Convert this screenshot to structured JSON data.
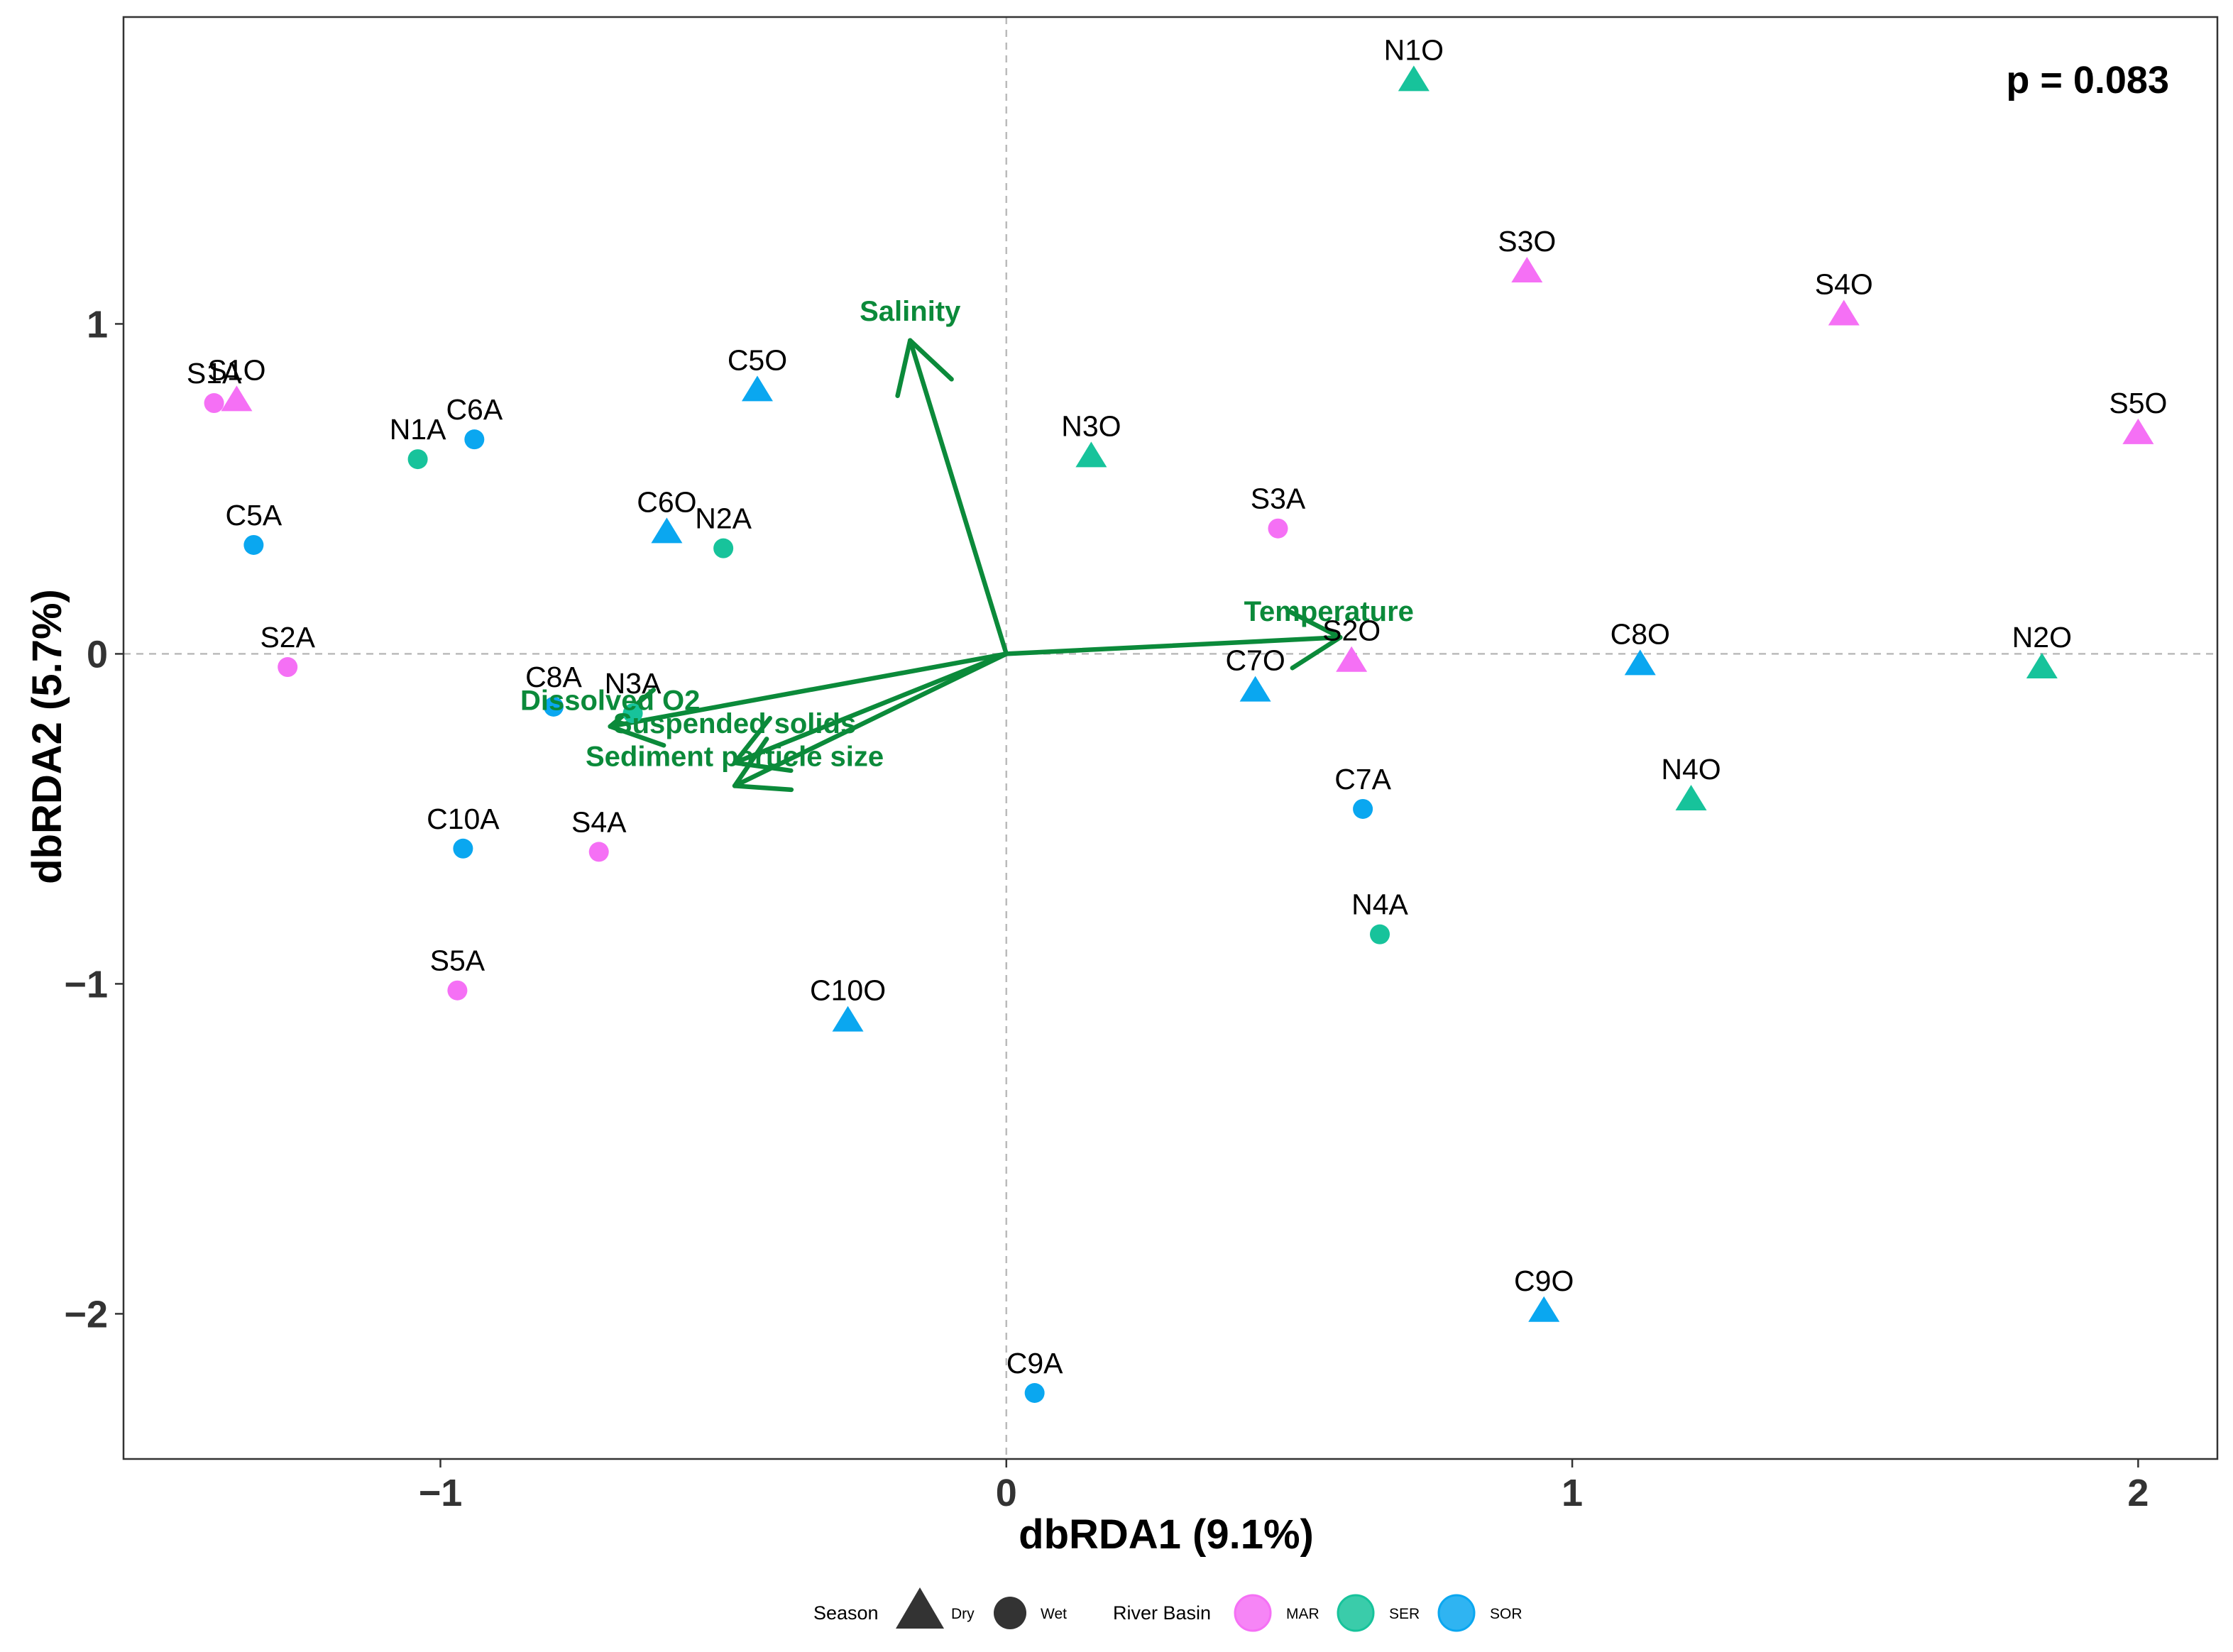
{
  "chart_data": {
    "type": "scatter",
    "xlabel": "dbRDA1 (9.1%)",
    "ylabel": "dbRDA2 (5.7%)",
    "xlim": [
      -1.56,
      2.14
    ],
    "ylim": [
      -2.44,
      1.93
    ],
    "x_ticks": [
      {
        "value": -1,
        "label": "−1"
      },
      {
        "value": 0,
        "label": "0"
      },
      {
        "value": 1,
        "label": "1"
      },
      {
        "value": 2,
        "label": "2"
      }
    ],
    "y_ticks": [
      {
        "value": -2,
        "label": "−2"
      },
      {
        "value": -1,
        "label": "−1"
      },
      {
        "value": 0,
        "label": "0"
      },
      {
        "value": 1,
        "label": "1"
      }
    ],
    "zero_reference_lines": true,
    "grid": false,
    "annotation": "p = 0.083",
    "legend": {
      "placement": "bottom",
      "season_title": "Season",
      "season_items": [
        {
          "label": "Dry",
          "shape": "triangle"
        },
        {
          "label": "Wet",
          "shape": "circle"
        }
      ],
      "basin_title": "River Basin",
      "basin_items": [
        {
          "label": "MAR",
          "color": "#f570f5"
        },
        {
          "label": "SER",
          "color": "#17c39b"
        },
        {
          "label": "SOR",
          "color": "#0aa7f0"
        }
      ]
    },
    "colors": {
      "MAR": "#f570f5",
      "SER": "#17c39b",
      "SOR": "#0aa7f0",
      "vectors": "#0b8a3a"
    },
    "points": [
      {
        "label": "N1O",
        "x": 0.72,
        "y": 1.74,
        "season": "Dry",
        "basin": "SER"
      },
      {
        "label": "S3O",
        "x": 0.92,
        "y": 1.16,
        "season": "Dry",
        "basin": "MAR"
      },
      {
        "label": "S4O",
        "x": 1.48,
        "y": 1.03,
        "season": "Dry",
        "basin": "MAR"
      },
      {
        "label": "S5O",
        "x": 2.0,
        "y": 0.67,
        "season": "Dry",
        "basin": "MAR"
      },
      {
        "label": "S1A",
        "x": -1.4,
        "y": 0.76,
        "season": "Wet",
        "basin": "MAR"
      },
      {
        "label": "S1O",
        "x": -1.36,
        "y": 0.77,
        "season": "Dry",
        "basin": "MAR"
      },
      {
        "label": "C5O",
        "x": -0.44,
        "y": 0.8,
        "season": "Dry",
        "basin": "SOR"
      },
      {
        "label": "N1A",
        "x": -1.04,
        "y": 0.59,
        "season": "Wet",
        "basin": "SER"
      },
      {
        "label": "C6A",
        "x": -0.94,
        "y": 0.65,
        "season": "Wet",
        "basin": "SOR"
      },
      {
        "label": "N3O",
        "x": 0.15,
        "y": 0.6,
        "season": "Dry",
        "basin": "SER"
      },
      {
        "label": "C5A",
        "x": -1.33,
        "y": 0.33,
        "season": "Wet",
        "basin": "SOR"
      },
      {
        "label": "C6O",
        "x": -0.6,
        "y": 0.37,
        "season": "Dry",
        "basin": "SOR"
      },
      {
        "label": "N2A",
        "x": -0.5,
        "y": 0.32,
        "season": "Wet",
        "basin": "SER"
      },
      {
        "label": "S3A",
        "x": 0.48,
        "y": 0.38,
        "season": "Wet",
        "basin": "MAR"
      },
      {
        "label": "S2A",
        "x": -1.27,
        "y": -0.04,
        "season": "Wet",
        "basin": "MAR"
      },
      {
        "label": "S2O",
        "x": 0.61,
        "y": -0.02,
        "season": "Dry",
        "basin": "MAR"
      },
      {
        "label": "C7O",
        "x": 0.44,
        "y": -0.11,
        "season": "Dry",
        "basin": "SOR"
      },
      {
        "label": "C8O",
        "x": 1.12,
        "y": -0.03,
        "season": "Dry",
        "basin": "SOR"
      },
      {
        "label": "N2O",
        "x": 1.83,
        "y": -0.04,
        "season": "Dry",
        "basin": "SER"
      },
      {
        "label": "C8A",
        "x": -0.8,
        "y": -0.16,
        "season": "Wet",
        "basin": "SOR"
      },
      {
        "label": "N3A",
        "x": -0.66,
        "y": -0.18,
        "season": "Wet",
        "basin": "SER"
      },
      {
        "label": "C7A",
        "x": 0.63,
        "y": -0.47,
        "season": "Wet",
        "basin": "SOR"
      },
      {
        "label": "N4O",
        "x": 1.21,
        "y": -0.44,
        "season": "Dry",
        "basin": "SER"
      },
      {
        "label": "C10A",
        "x": -0.96,
        "y": -0.59,
        "season": "Wet",
        "basin": "SOR"
      },
      {
        "label": "S4A",
        "x": -0.72,
        "y": -0.6,
        "season": "Wet",
        "basin": "MAR"
      },
      {
        "label": "N4A",
        "x": 0.66,
        "y": -0.85,
        "season": "Wet",
        "basin": "SER"
      },
      {
        "label": "S5A",
        "x": -0.97,
        "y": -1.02,
        "season": "Wet",
        "basin": "MAR"
      },
      {
        "label": "C10O",
        "x": -0.28,
        "y": -1.11,
        "season": "Dry",
        "basin": "SOR"
      },
      {
        "label": "C9O",
        "x": 0.95,
        "y": -1.99,
        "season": "Dry",
        "basin": "SOR"
      },
      {
        "label": "C9A",
        "x": 0.05,
        "y": -2.24,
        "season": "Wet",
        "basin": "SOR"
      }
    ],
    "vectors": [
      {
        "name": "Salinity",
        "x": -0.17,
        "y": 0.95,
        "label_x": -0.17,
        "label_y": 1.04
      },
      {
        "name": "Temperature",
        "x": 0.59,
        "y": 0.05,
        "label_x": 0.57,
        "label_y": 0.13
      },
      {
        "name": "Dissolved O2",
        "x": -0.7,
        "y": -0.22,
        "label_x": -0.7,
        "label_y": -0.14
      },
      {
        "name": "Suspended solids",
        "x": -0.48,
        "y": -0.33,
        "label_x": -0.48,
        "label_y": -0.21
      },
      {
        "name": "Sediment particle size",
        "x": -0.48,
        "y": -0.4,
        "label_x": -0.48,
        "label_y": -0.31
      }
    ]
  }
}
